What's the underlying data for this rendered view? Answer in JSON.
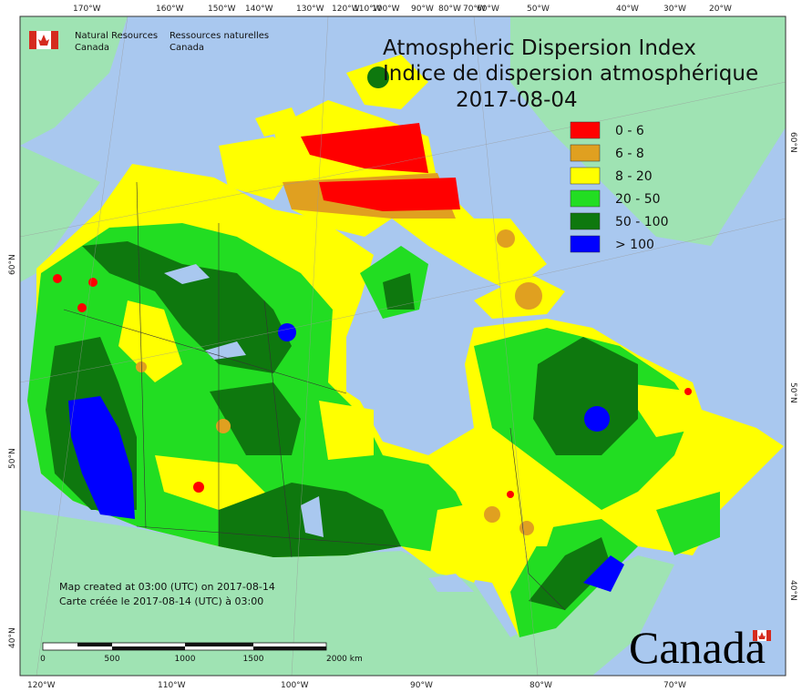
{
  "header": {
    "agency_en": [
      "Natural Resources",
      "Canada"
    ],
    "agency_fr": [
      "Ressources naturelles",
      "Canada"
    ]
  },
  "title": {
    "lines": [
      "Atmospheric Dispersion Index",
      "Indice de dispersion atmosphérique",
      "2017-08-04"
    ]
  },
  "legend": {
    "items": [
      {
        "label": "0 - 6",
        "color": "#ff0000"
      },
      {
        "label": "6 - 8",
        "color": "#e0a020"
      },
      {
        "label": "8 - 20",
        "color": "#ffff00"
      },
      {
        "label": "20 - 50",
        "color": "#22dd22"
      },
      {
        "label": "50 - 100",
        "color": "#0e780e"
      },
      {
        "label": "> 100",
        "color": "#0000ff"
      }
    ]
  },
  "graticule": {
    "top": [
      "170°W",
      "160°W",
      "150°W",
      "140°W",
      "130°W",
      "120°W",
      "110°W",
      "100°W",
      "90°W",
      "80°W",
      "70°W",
      "60°W",
      "50°W",
      "40°W",
      "30°W",
      "20°W"
    ],
    "bottom": [
      "120°W",
      "110°W",
      "100°W",
      "90°W",
      "80°W",
      "70°W"
    ],
    "left": [
      "60°N",
      "50°N",
      "40°N"
    ],
    "right": [
      "60°N",
      "50°N",
      "40°N"
    ]
  },
  "notes": [
    "Map created at 03:00 (UTC) on 2017-08-14",
    "Carte créée le 2017-08-14 (UTC) à 03:00"
  ],
  "scale_bar": {
    "labels": [
      "0",
      "500",
      "1000",
      "1500",
      "2000 km"
    ]
  },
  "wordmark": "Canada"
}
